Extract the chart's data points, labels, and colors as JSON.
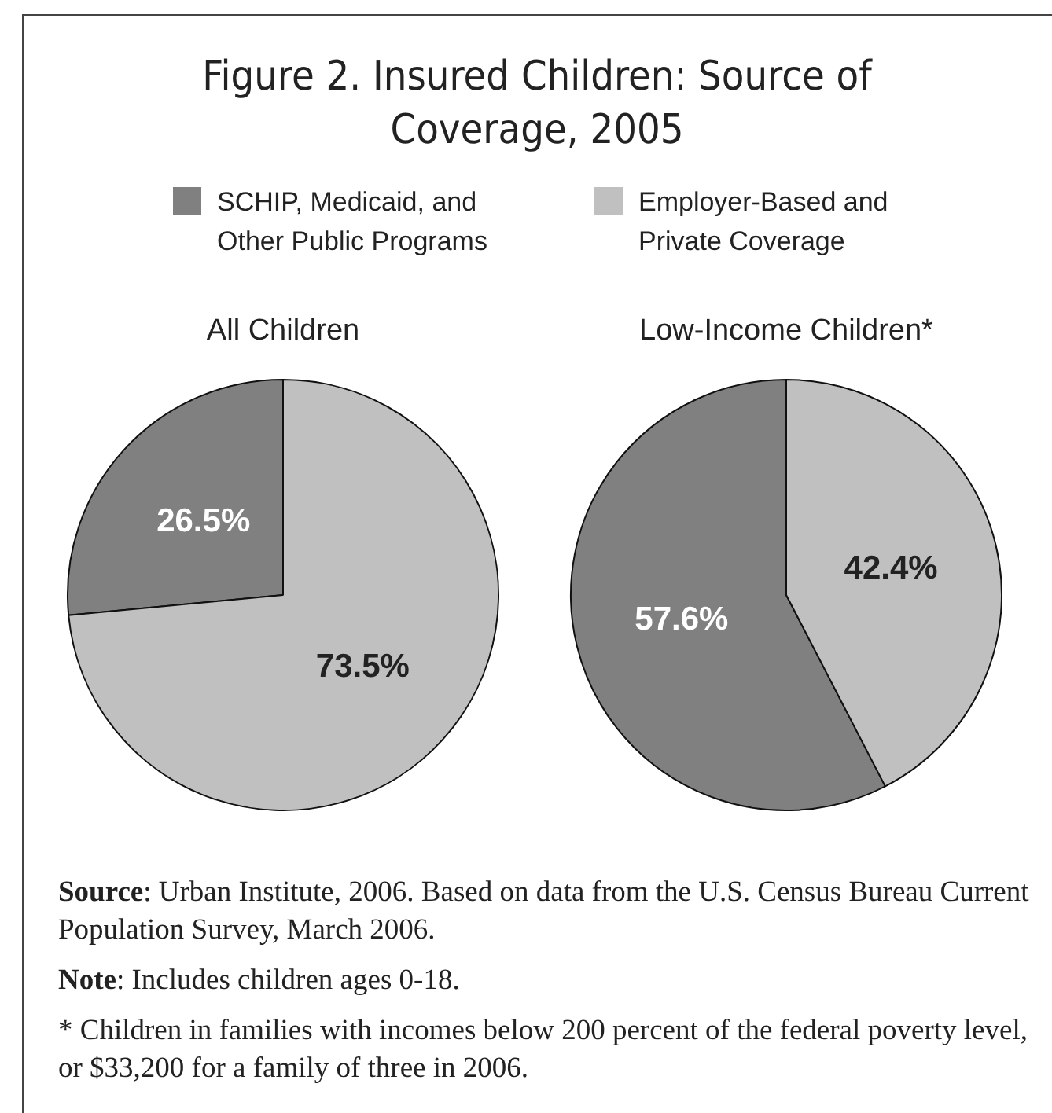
{
  "chart_data": {
    "type": "pie",
    "title": "Figure 2. Insured Children: Source of Coverage, 2005",
    "categories": [
      "SCHIP, Medicaid, and Other Public Programs",
      "Employer-Based and Private Coverage"
    ],
    "colors": [
      "#808080",
      "#c0c0c0"
    ],
    "legend": "top",
    "series": [
      {
        "name": "All Children",
        "values": [
          26.5,
          73.5
        ],
        "value_labels": [
          "26.5%",
          "73.5%"
        ]
      },
      {
        "name": "Low-Income Children*",
        "values": [
          57.6,
          42.4
        ],
        "value_labels": [
          "57.6%",
          "42.4%"
        ]
      }
    ],
    "annotations": [
      "Source: Urban Institute, 2006. Based on data from the U.S. Census Bureau Current Population Survey, March 2006.",
      "Note: Includes children ages 0-18.",
      "* Children in families with incomes below 200 percent of the federal poverty level, or $33,200 for a family of three in 2006."
    ]
  }
}
